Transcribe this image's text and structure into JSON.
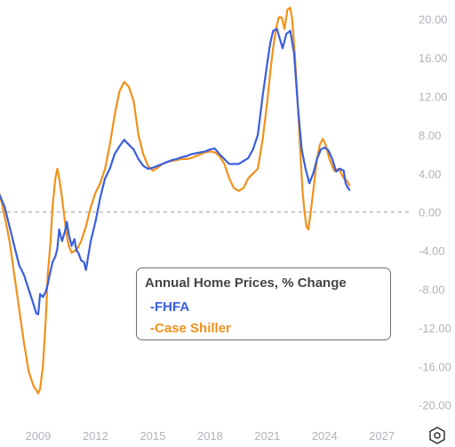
{
  "chart_data": {
    "type": "line",
    "title": "",
    "xlabel": "",
    "ylabel": "",
    "xlim": [
      2007.0,
      2028.5
    ],
    "ylim": [
      -21.5,
      22
    ],
    "x_ticks": [
      2009,
      2012,
      2015,
      2018,
      2021,
      2024,
      2027
    ],
    "y_ticks": [
      20,
      16,
      12,
      8,
      4,
      0,
      -4,
      -8,
      -12,
      -16,
      -20
    ],
    "y_tick_labels": [
      "20.00",
      "16.00",
      "12.00",
      "8.00",
      "4.00",
      "0.00",
      "-4.00",
      "-8.00",
      "-12.00",
      "-16.00",
      "-20.00"
    ],
    "y_axis_position": "right",
    "zero_line": "dashed",
    "grid": false,
    "legend": {
      "title": "Annual Home Prices, % Change",
      "placement": "center-right",
      "entries": [
        "-FHFA",
        "-Case Shiller"
      ]
    },
    "series": [
      {
        "name": "FHFA",
        "color": "#3a5fdc",
        "x": [
          2007.0,
          2007.25,
          2007.5,
          2007.75,
          2008.0,
          2008.25,
          2008.5,
          2008.7,
          2008.9,
          2009.0,
          2009.1,
          2009.25,
          2009.4,
          2009.5,
          2009.6,
          2009.75,
          2009.9,
          2010.0,
          2010.1,
          2010.25,
          2010.4,
          2010.5,
          2010.6,
          2010.75,
          2010.9,
          2011.0,
          2011.1,
          2011.25,
          2011.4,
          2011.5,
          2011.75,
          2012.0,
          2012.25,
          2012.5,
          2012.75,
          2013.0,
          2013.25,
          2013.5,
          2013.75,
          2014.0,
          2014.25,
          2014.5,
          2014.75,
          2015.0,
          2015.25,
          2015.5,
          2015.75,
          2016.0,
          2016.25,
          2016.5,
          2016.75,
          2017.0,
          2017.25,
          2017.5,
          2017.75,
          2018.0,
          2018.25,
          2018.5,
          2018.75,
          2019.0,
          2019.25,
          2019.5,
          2019.75,
          2020.0,
          2020.25,
          2020.5,
          2020.75,
          2021.0,
          2021.15,
          2021.3,
          2021.5,
          2021.65,
          2021.8,
          2022.0,
          2022.2,
          2022.4,
          2022.6,
          2022.8,
          2023.0,
          2023.2,
          2023.4,
          2023.6,
          2023.8,
          2024.0,
          2024.2,
          2024.4,
          2024.6,
          2024.8,
          2025.0,
          2025.1,
          2025.2,
          2025.3
        ],
        "values": [
          1.7,
          0.5,
          -1.5,
          -3.5,
          -5.5,
          -6.5,
          -8.0,
          -9.2,
          -10.5,
          -10.6,
          -8.5,
          -8.8,
          -8.2,
          -7.5,
          -6.5,
          -5.2,
          -4.6,
          -3.8,
          -1.8,
          -3.0,
          -2.0,
          -1.0,
          -2.3,
          -3.5,
          -2.8,
          -4.0,
          -4.2,
          -5.0,
          -5.2,
          -6.0,
          -3.0,
          -1.0,
          1.5,
          3.5,
          4.5,
          6.0,
          6.8,
          7.5,
          7.0,
          6.5,
          5.5,
          4.8,
          4.5,
          4.6,
          4.8,
          5.0,
          5.2,
          5.4,
          5.5,
          5.7,
          5.8,
          6.0,
          6.1,
          6.2,
          6.3,
          6.5,
          6.6,
          6.0,
          5.5,
          5.0,
          5.0,
          5.0,
          5.3,
          5.6,
          6.5,
          8.0,
          12.0,
          15.5,
          17.5,
          18.8,
          19.0,
          18.0,
          17.0,
          18.5,
          18.8,
          16.5,
          11.0,
          6.5,
          4.5,
          3.0,
          4.0,
          5.5,
          6.5,
          6.7,
          6.4,
          5.5,
          4.2,
          4.5,
          4.3,
          3.0,
          2.6,
          2.3
        ]
      },
      {
        "name": "Case Shiller",
        "color": "#f2911b",
        "x": [
          2007.0,
          2007.25,
          2007.5,
          2007.75,
          2008.0,
          2008.25,
          2008.5,
          2008.75,
          2009.0,
          2009.1,
          2009.25,
          2009.4,
          2009.5,
          2009.65,
          2009.75,
          2009.9,
          2010.0,
          2010.1,
          2010.25,
          2010.4,
          2010.5,
          2010.6,
          2010.75,
          2010.9,
          2011.0,
          2011.25,
          2011.5,
          2011.75,
          2012.0,
          2012.25,
          2012.5,
          2012.75,
          2013.0,
          2013.25,
          2013.5,
          2013.75,
          2014.0,
          2014.25,
          2014.5,
          2014.75,
          2015.0,
          2015.25,
          2015.5,
          2015.75,
          2016.0,
          2016.25,
          2016.5,
          2016.75,
          2017.0,
          2017.25,
          2017.5,
          2017.75,
          2018.0,
          2018.25,
          2018.5,
          2018.75,
          2019.0,
          2019.25,
          2019.5,
          2019.75,
          2020.0,
          2020.25,
          2020.5,
          2020.75,
          2021.0,
          2021.15,
          2021.3,
          2021.45,
          2021.6,
          2021.75,
          2021.9,
          2022.05,
          2022.2,
          2022.3,
          2022.45,
          2022.6,
          2022.75,
          2022.85,
          2022.95,
          2023.05,
          2023.15,
          2023.3,
          2023.45,
          2023.6,
          2023.75,
          2023.9,
          2024.05,
          2024.25,
          2024.5,
          2024.75,
          2025.0,
          2025.15,
          2025.3
        ],
        "values": [
          1.8,
          -0.5,
          -3.0,
          -6.5,
          -10.0,
          -13.5,
          -16.5,
          -18.0,
          -18.8,
          -18.3,
          -16.0,
          -11.0,
          -6.5,
          -3.0,
          0.5,
          3.5,
          4.5,
          3.5,
          1.5,
          -1.0,
          -2.5,
          -3.5,
          -4.2,
          -4.0,
          -4.0,
          -3.0,
          -1.5,
          0.5,
          2.0,
          3.0,
          4.5,
          7.0,
          10.0,
          12.5,
          13.5,
          13.0,
          11.5,
          8.0,
          6.0,
          4.8,
          4.3,
          4.6,
          5.0,
          5.2,
          5.3,
          5.4,
          5.5,
          5.5,
          5.6,
          5.8,
          6.0,
          6.2,
          6.3,
          6.2,
          5.8,
          5.0,
          3.5,
          2.5,
          2.2,
          2.5,
          3.5,
          4.0,
          4.5,
          7.5,
          11.5,
          14.5,
          17.0,
          19.0,
          20.2,
          20.2,
          19.0,
          21.0,
          21.2,
          20.0,
          16.0,
          11.0,
          5.5,
          2.0,
          0.0,
          -1.5,
          -1.8,
          0.5,
          3.0,
          5.5,
          7.0,
          7.6,
          7.0,
          5.5,
          4.3,
          4.5,
          3.5,
          3.3,
          2.8
        ]
      }
    ]
  },
  "settings_icon": "settings-hexagon-icon"
}
